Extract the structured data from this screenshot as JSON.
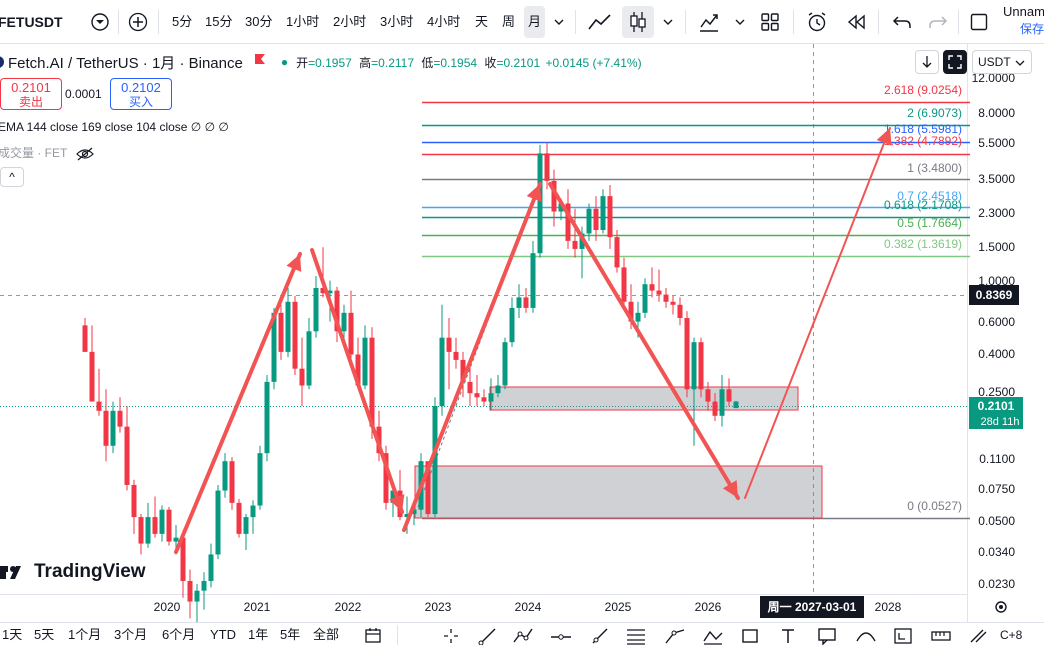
{
  "topbar": {
    "symbol": "FETUSDT",
    "timeframes": [
      "5分",
      "15分",
      "30分",
      "1小时",
      "2小时",
      "3小时",
      "4小时",
      "天",
      "周",
      "月"
    ],
    "active_timeframe": "月",
    "layout_name": "Unnam",
    "save_label": "保存"
  },
  "legend": {
    "title": "Fetch.AI / TetherUS · 1月 · Binance",
    "open_label": "开",
    "open": "=0.1957",
    "high_label": "高",
    "high": "=0.2117",
    "low_label": "低",
    "low": "=0.1954",
    "close_label": "收",
    "close": "=0.2101",
    "change": "+0.0145 (+7.41%)",
    "sell_price": "0.2101",
    "sell_label": "卖出",
    "buy_price": "0.2102",
    "buy_label": "买入",
    "spread": "0.0001",
    "ema_text": "EMA 144 close 169 close 104 close  ∅  ∅  ∅",
    "volume_text": "成交量 · FET",
    "collapse_glyph": "^"
  },
  "price_scale": {
    "currency": "USDT",
    "ticks": [
      "12.0000",
      "8.0000",
      "5.5000",
      "3.5000",
      "2.3000",
      "1.5000",
      "1.0000",
      "0.6000",
      "0.4000",
      "0.2500",
      "0.1100",
      "0.0750",
      "0.0500",
      "0.0340",
      "0.0230"
    ],
    "crosshair_price": "0.8369",
    "current_price": "0.2101",
    "countdown": "28d 11h"
  },
  "time_scale": {
    "ticks": [
      "2020",
      "2021",
      "2022",
      "2023",
      "2024",
      "2025",
      "2026",
      "2028"
    ],
    "crosshair_date": "周一  2027-03-01"
  },
  "fib_levels": [
    {
      "label": "2.618 (9.0254)",
      "color": "#f23645"
    },
    {
      "label": "2 (6.9073)",
      "color": "#089981"
    },
    {
      "label": "1.618 (5.5981)",
      "color": "#2962ff"
    },
    {
      "label": "1.382 (4.7892)",
      "color": "#f23645"
    },
    {
      "label": "1 (3.4800)",
      "color": "#787b86"
    },
    {
      "label": "0.7 (2.4518)",
      "color": "#42a5f5"
    },
    {
      "label": "0.618 (2.1708)",
      "color": "#089981"
    },
    {
      "label": "0.5 (1.7664)",
      "color": "#4caf50"
    },
    {
      "label": "0.382 (1.3619)",
      "color": "#81c784"
    },
    {
      "label": "0 (0.0527)",
      "color": "#787b86"
    }
  ],
  "bottombar": {
    "ranges": [
      "1天",
      "5天",
      "1个月",
      "3个月",
      "6个月",
      "YTD",
      "1年",
      "5年",
      "全部"
    ]
  },
  "logo_text": "TradingView",
  "colors": {
    "up": "#089981",
    "down": "#f23645",
    "arrow": "#f25454",
    "accent": "#2962ff"
  }
}
